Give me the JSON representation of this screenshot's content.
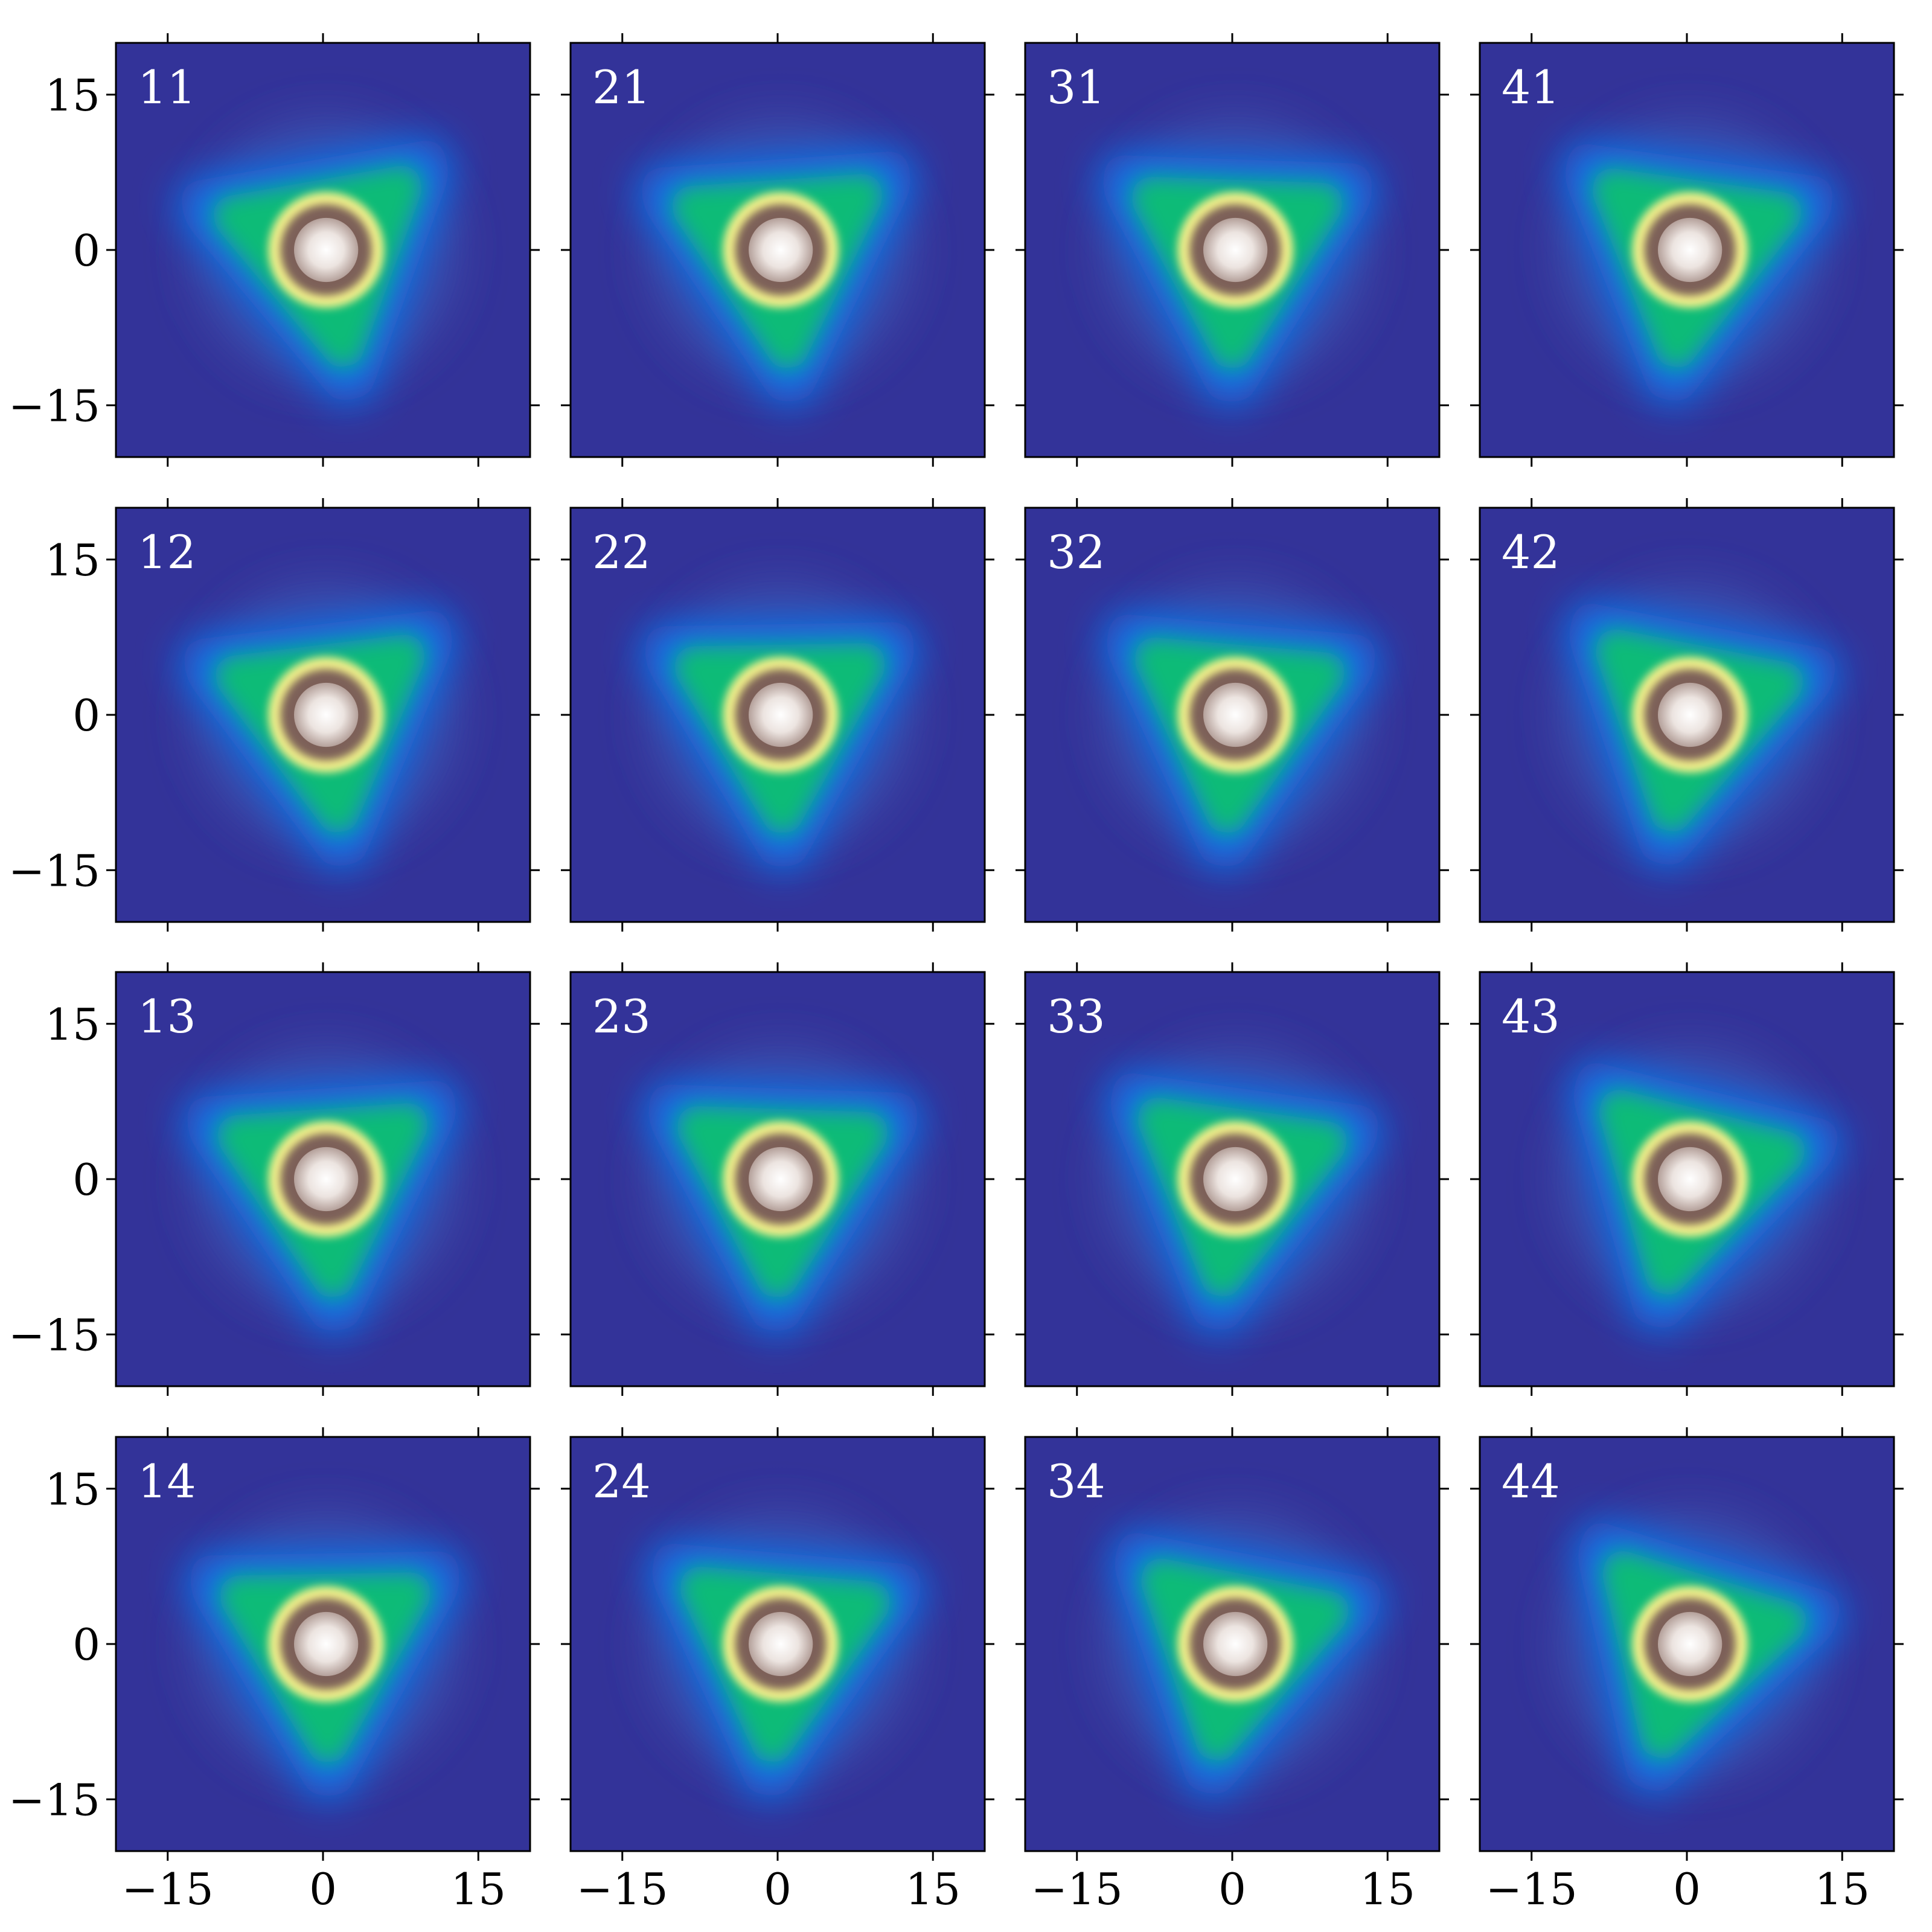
{
  "chart_data": [
    {
      "type": "image",
      "title": "11",
      "xlim": [
        -20,
        20
      ],
      "ylim": [
        -20,
        20
      ],
      "xticks": [
        {
          "value": -15,
          "label": "−15"
        },
        0,
        15
      ],
      "yticks": [
        15,
        0,
        {
          "value": -15,
          "label": "−15"
        }
      ]
    },
    {
      "type": "image",
      "title": "21",
      "xlim": [
        -20,
        20
      ],
      "ylim": [
        -20,
        20
      ],
      "xticks": [
        {
          "value": -15,
          "label": "−15"
        },
        0,
        15
      ],
      "yticks": [
        15,
        0,
        {
          "value": -15,
          "label": "−15"
        }
      ]
    },
    {
      "type": "image",
      "title": "31",
      "xlim": [
        -20,
        20
      ],
      "ylim": [
        -20,
        20
      ],
      "xticks": [
        {
          "value": -15,
          "label": "−15"
        },
        0,
        15
      ],
      "yticks": [
        15,
        0,
        {
          "value": -15,
          "label": "−15"
        }
      ]
    },
    {
      "type": "image",
      "title": "41",
      "xlim": [
        -20,
        20
      ],
      "ylim": [
        -20,
        20
      ],
      "xticks": [
        {
          "value": -15,
          "label": "−15"
        },
        0,
        15
      ],
      "yticks": [
        15,
        0,
        {
          "value": -15,
          "label": "−15"
        }
      ]
    },
    {
      "type": "image",
      "title": "12",
      "xlim": [
        -20,
        20
      ],
      "ylim": [
        -20,
        20
      ],
      "xticks": [
        {
          "value": -15,
          "label": "−15"
        },
        0,
        15
      ],
      "yticks": [
        15,
        0,
        {
          "value": -15,
          "label": "−15"
        }
      ]
    },
    {
      "type": "image",
      "title": "22",
      "xlim": [
        -20,
        20
      ],
      "ylim": [
        -20,
        20
      ],
      "xticks": [
        {
          "value": -15,
          "label": "−15"
        },
        0,
        15
      ],
      "yticks": [
        15,
        0,
        {
          "value": -15,
          "label": "−15"
        }
      ]
    },
    {
      "type": "image",
      "title": "32",
      "xlim": [
        -20,
        20
      ],
      "ylim": [
        -20,
        20
      ],
      "xticks": [
        {
          "value": -15,
          "label": "−15"
        },
        0,
        15
      ],
      "yticks": [
        15,
        0,
        {
          "value": -15,
          "label": "−15"
        }
      ]
    },
    {
      "type": "image",
      "title": "42",
      "xlim": [
        -20,
        20
      ],
      "ylim": [
        -20,
        20
      ],
      "xticks": [
        {
          "value": -15,
          "label": "−15"
        },
        0,
        15
      ],
      "yticks": [
        15,
        0,
        {
          "value": -15,
          "label": "−15"
        }
      ]
    },
    {
      "type": "image",
      "title": "13",
      "xlim": [
        -20,
        20
      ],
      "ylim": [
        -20,
        20
      ],
      "xticks": [
        {
          "value": -15,
          "label": "−15"
        },
        0,
        15
      ],
      "yticks": [
        15,
        0,
        {
          "value": -15,
          "label": "−15"
        }
      ]
    },
    {
      "type": "image",
      "title": "23",
      "xlim": [
        -20,
        20
      ],
      "ylim": [
        -20,
        20
      ],
      "xticks": [
        {
          "value": -15,
          "label": "−15"
        },
        0,
        15
      ],
      "yticks": [
        15,
        0,
        {
          "value": -15,
          "label": "−15"
        }
      ]
    },
    {
      "type": "image",
      "title": "33",
      "xlim": [
        -20,
        20
      ],
      "ylim": [
        -20,
        20
      ],
      "xticks": [
        {
          "value": -15,
          "label": "−15"
        },
        0,
        15
      ],
      "yticks": [
        15,
        0,
        {
          "value": -15,
          "label": "−15"
        }
      ]
    },
    {
      "type": "image",
      "title": "43",
      "xlim": [
        -20,
        20
      ],
      "ylim": [
        -20,
        20
      ],
      "xticks": [
        {
          "value": -15,
          "label": "−15"
        },
        0,
        15
      ],
      "yticks": [
        15,
        0,
        {
          "value": -15,
          "label": "−15"
        }
      ]
    },
    {
      "type": "image",
      "title": "14",
      "xlim": [
        -20,
        20
      ],
      "ylim": [
        -20,
        20
      ],
      "xticks": [
        {
          "value": -15,
          "label": "−15"
        },
        0,
        15
      ],
      "yticks": [
        15,
        0,
        {
          "value": -15,
          "label": "−15"
        }
      ]
    },
    {
      "type": "image",
      "title": "24",
      "xlim": [
        -20,
        20
      ],
      "ylim": [
        -20,
        20
      ],
      "xticks": [
        {
          "value": -15,
          "label": "−15"
        },
        0,
        15
      ],
      "yticks": [
        15,
        0,
        {
          "value": -15,
          "label": "−15"
        }
      ]
    },
    {
      "type": "image",
      "title": "34",
      "xlim": [
        -20,
        20
      ],
      "ylim": [
        -20,
        20
      ],
      "xticks": [
        {
          "value": -15,
          "label": "−15"
        },
        0,
        15
      ],
      "yticks": [
        15,
        0,
        {
          "value": -15,
          "label": "−15"
        }
      ]
    },
    {
      "type": "image",
      "title": "44",
      "xlim": [
        -20,
        20
      ],
      "ylim": [
        -20,
        20
      ],
      "xticks": [
        {
          "value": -15,
          "label": "−15"
        },
        0,
        15
      ],
      "yticks": [
        15,
        0,
        {
          "value": -15,
          "label": "−15"
        }
      ]
    }
  ]
}
